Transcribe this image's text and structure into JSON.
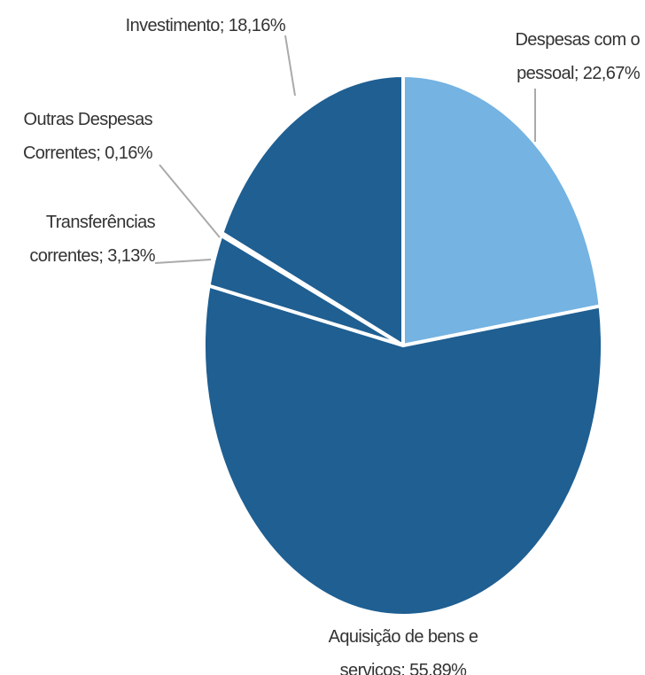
{
  "chart_data": {
    "type": "pie",
    "categories": [
      "Despesas com o pessoal",
      "Aquisição de bens e serviços",
      "Transferências correntes",
      "Outras Despesas Correntes",
      "Investimento"
    ],
    "values": [
      22.67,
      55.89,
      3.13,
      0.16,
      18.16
    ],
    "value_labels": [
      "22,67%",
      "55,89%",
      "3,13%",
      "0,16%",
      "18,16%"
    ],
    "colors": [
      "#74b3e2",
      "#1f5f92",
      "#1f5f92",
      "#1f5f92",
      "#1f5f92"
    ]
  }
}
